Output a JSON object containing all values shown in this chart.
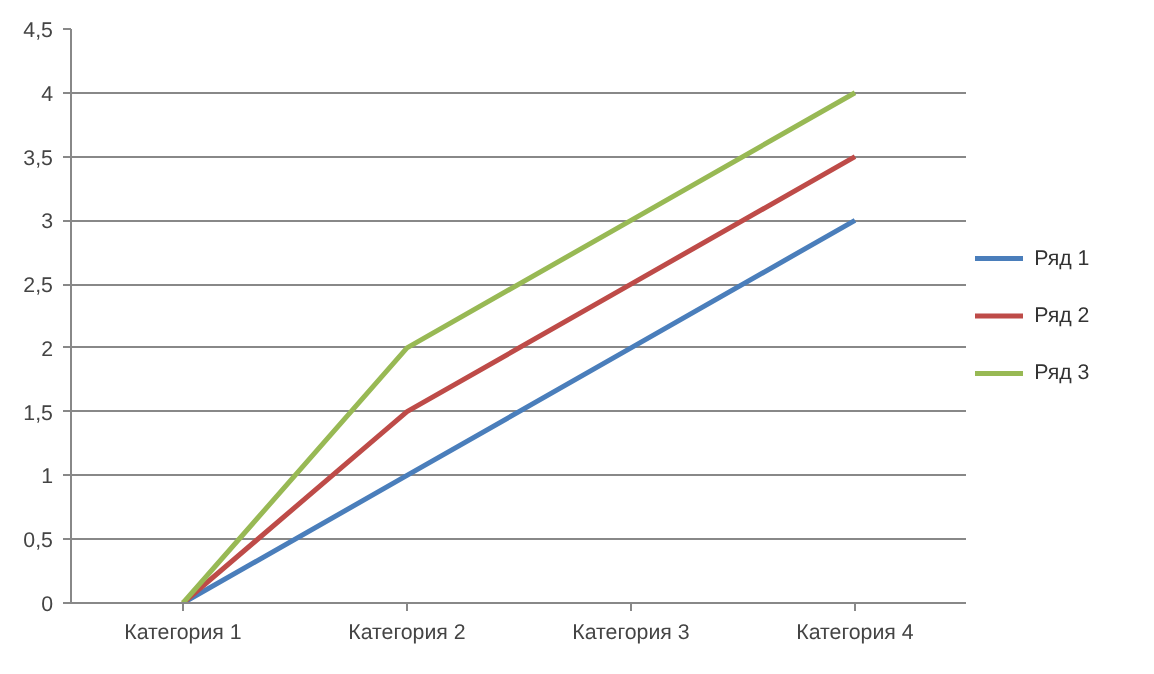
{
  "chart_data": {
    "type": "line",
    "categories": [
      "Категория 1",
      "Категория 2",
      "Категория 3",
      "Категория 4"
    ],
    "series": [
      {
        "name": "Ряд 1",
        "color": "#4a7ebb",
        "values": [
          0,
          1,
          2,
          3
        ]
      },
      {
        "name": "Ряд 2",
        "color": "#be4b48",
        "values": [
          0,
          1.5,
          2.5,
          3.5
        ]
      },
      {
        "name": "Ряд 3",
        "color": "#98b954",
        "values": [
          0,
          2,
          3,
          4
        ]
      }
    ],
    "ylim": [
      0,
      4.5
    ],
    "yticks": [
      0,
      {
        "value": 0.5,
        "label": "0,5"
      },
      1,
      {
        "value": 1.5,
        "label": "1,5"
      },
      2,
      {
        "value": 2.5,
        "label": "2,5"
      },
      3,
      {
        "value": 3.5,
        "label": "3,5"
      },
      4,
      {
        "value": 4.5,
        "label": "4,5"
      }
    ],
    "grid": "y",
    "legend": "right",
    "line_style": "solid",
    "marker": "none"
  }
}
